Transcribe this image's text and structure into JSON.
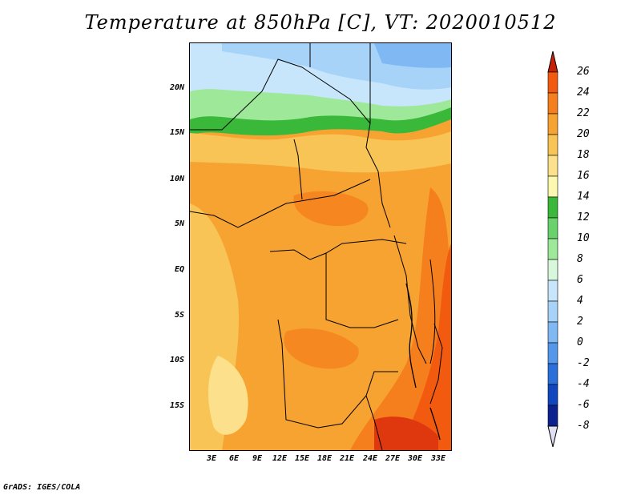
{
  "title": "Temperature at 850hPa [C], VT: 2020010512",
  "credit": "GrADS: IGES/COLA",
  "lat_labels": [
    "20N",
    "15N",
    "10N",
    "5N",
    "EQ",
    "5S",
    "10S",
    "15S"
  ],
  "lon_labels": [
    "3E",
    "6E",
    "9E",
    "12E",
    "15E",
    "18E",
    "21E",
    "24E",
    "27E",
    "30E",
    "33E"
  ],
  "colorbar": {
    "levels": [
      "26",
      "24",
      "22",
      "20",
      "18",
      "16",
      "14",
      "12",
      "10",
      "8",
      "6",
      "4",
      "2",
      "0",
      "-2",
      "-4",
      "-6",
      "-8"
    ],
    "colors": [
      "#e0380e",
      "#f25a0f",
      "#f57f1c",
      "#f7a332",
      "#f8c456",
      "#fde08b",
      "#fdf8b0",
      "#3ab83a",
      "#6ad26a",
      "#9ee89a",
      "#d8f8dc",
      "#c8e6fb",
      "#a7d3f8",
      "#7fb8f3",
      "#5597ea",
      "#2b6fdb",
      "#1147be",
      "#0a218e"
    ],
    "top_arrow_color": "#c72206",
    "bottom_arrow_color": "#e0e0f5"
  },
  "map_field": {
    "note": "Temperature field rendered as colored regions",
    "dominant_colors": [
      "#f7a332",
      "#f8c456",
      "#f57f1c",
      "#3ab83a",
      "#9ee89a",
      "#c8e6fb",
      "#7fb8f3"
    ]
  }
}
